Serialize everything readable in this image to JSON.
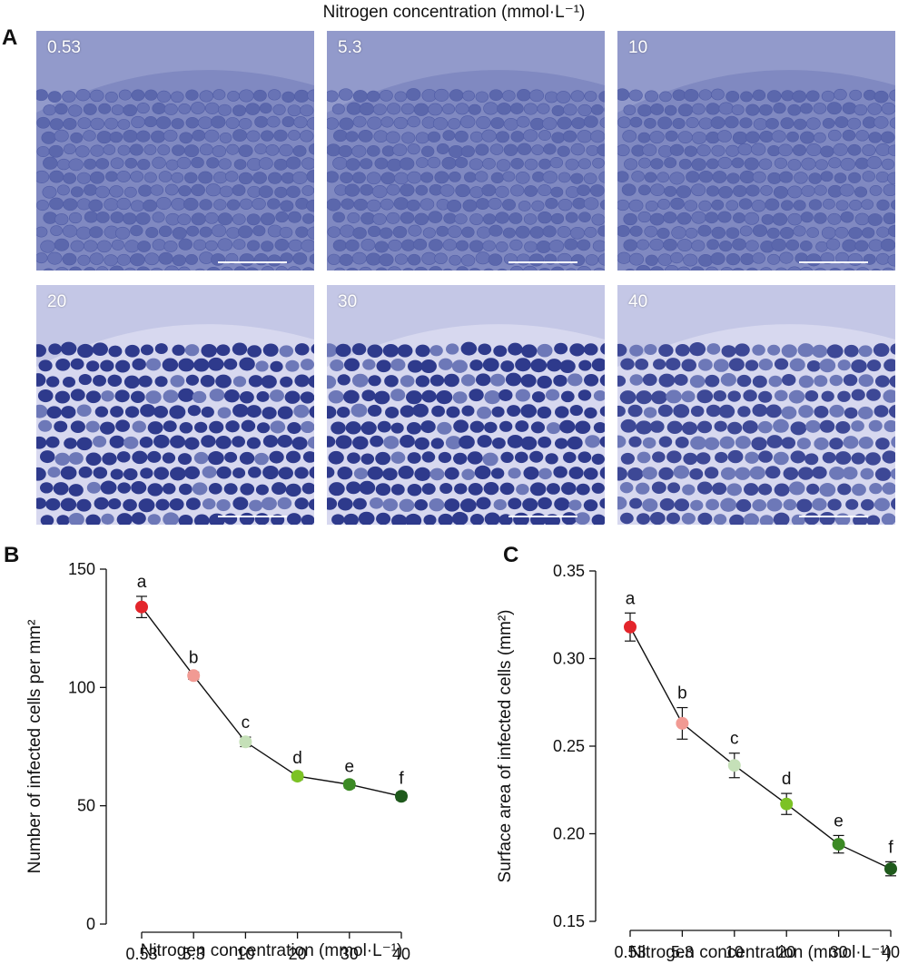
{
  "figure": {
    "title": "Nitrogen concentration (mmol·L⁻¹)",
    "panel_a_label": "A",
    "panel_b_label": "B",
    "panel_c_label": "C"
  },
  "micrographs": [
    {
      "label": "0.53",
      "style": "loose"
    },
    {
      "label": "5.3",
      "style": "loose"
    },
    {
      "label": "10",
      "style": "loose"
    },
    {
      "label": "20",
      "style": "dense"
    },
    {
      "label": "30",
      "style": "dense"
    },
    {
      "label": "40",
      "style": "medium"
    }
  ],
  "colors": {
    "tissue_light": "#6d78b8",
    "tissue_dark": "#2e3a8c",
    "cell_gap": "#d7d8ef",
    "line": "#111111"
  },
  "chart_data": [
    {
      "type": "line",
      "title": "",
      "xlabel": "Nitrogen concentration (mmol·L⁻¹)",
      "ylabel": "Number of infected cells per mm²",
      "categories": [
        "0.53",
        "5.3",
        "10",
        "20",
        "30",
        "40"
      ],
      "values": [
        134,
        105,
        77,
        62.5,
        59,
        54
      ],
      "errors": [
        4.5,
        1.5,
        2,
        1.5,
        1.5,
        1.5
      ],
      "point_labels": [
        "a",
        "b",
        "c",
        "d",
        "e",
        "f"
      ],
      "point_colors": [
        "#e3252b",
        "#f19a93",
        "#c5e0b8",
        "#7cc225",
        "#3c8a25",
        "#1f5a1c"
      ],
      "ylim": [
        0,
        150
      ],
      "yticks": [
        "0",
        "50",
        "100",
        "150"
      ]
    },
    {
      "type": "line",
      "title": "",
      "xlabel": "Nitrogen concentration (mmol·L⁻¹)",
      "ylabel": "Surface area of infected cells (mm²)",
      "categories": [
        "0.53",
        "5.3",
        "10",
        "20",
        "30",
        "40"
      ],
      "values": [
        0.318,
        0.263,
        0.239,
        0.217,
        0.194,
        0.18
      ],
      "errors": [
        0.008,
        0.009,
        0.007,
        0.006,
        0.005,
        0.004
      ],
      "point_labels": [
        "a",
        "b",
        "c",
        "d",
        "e",
        "f"
      ],
      "point_colors": [
        "#e3252b",
        "#f19a93",
        "#c5e0b8",
        "#7cc225",
        "#3c8a25",
        "#1f5a1c"
      ],
      "ylim": [
        0.15,
        0.35
      ],
      "yticks": [
        "0.15",
        "0.20",
        "0.25",
        "0.30",
        "0.35"
      ]
    }
  ]
}
